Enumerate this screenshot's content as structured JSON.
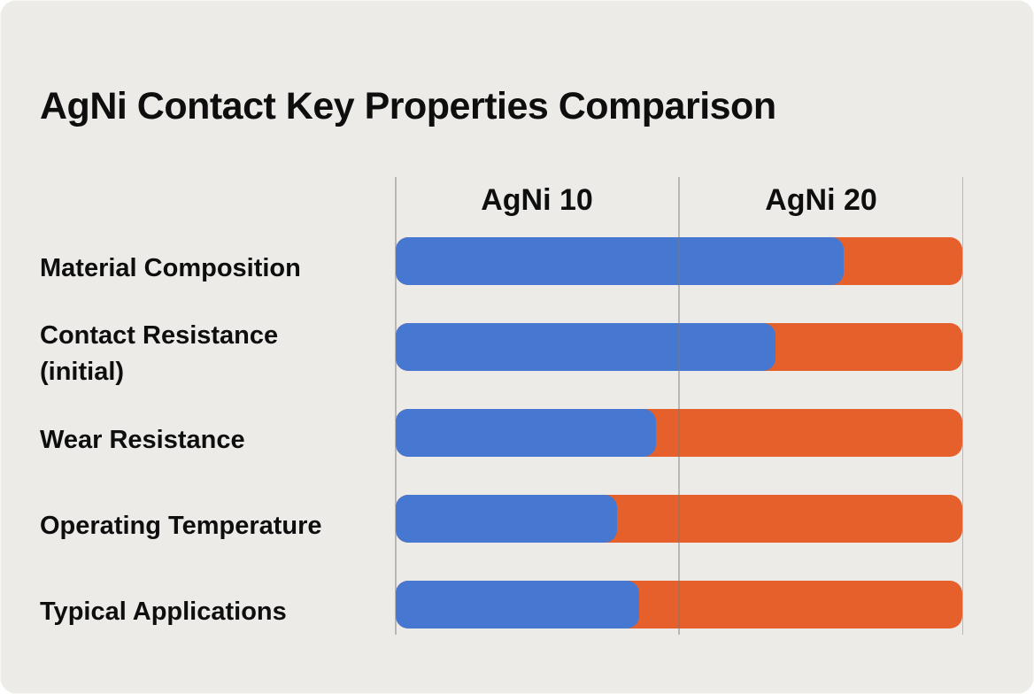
{
  "title": "AgNi Contact Key Properties Comparison",
  "colors": {
    "background": "#ECEBE8",
    "text": "#0E0E0E",
    "grid": "#7A7977",
    "agni10_blue": "#4678D2",
    "agni20_orange": "#E6602B"
  },
  "chart_data": {
    "type": "bar",
    "subtype": "horizontal-stacked",
    "title": "AgNi Contact Key Properties Comparison",
    "categories": [
      "Material Composition",
      "Contact Resistance (initial)",
      "Wear Resistance",
      "Operating Temperature",
      "Typical Applications"
    ],
    "series": [
      {
        "name": "AgNi 10",
        "color": "#4678D2",
        "values_pct": [
          79,
          67,
          46,
          39,
          43
        ]
      },
      {
        "name": "AgNi 20",
        "color": "#E6602B",
        "values_pct": [
          21,
          33,
          54,
          61,
          57
        ]
      }
    ],
    "xlim": [
      0,
      100
    ],
    "xlabel": "",
    "ylabel": "",
    "grid": "three vertical column-separator lines drawn over bars",
    "legend_position": "column headers above chart area"
  }
}
